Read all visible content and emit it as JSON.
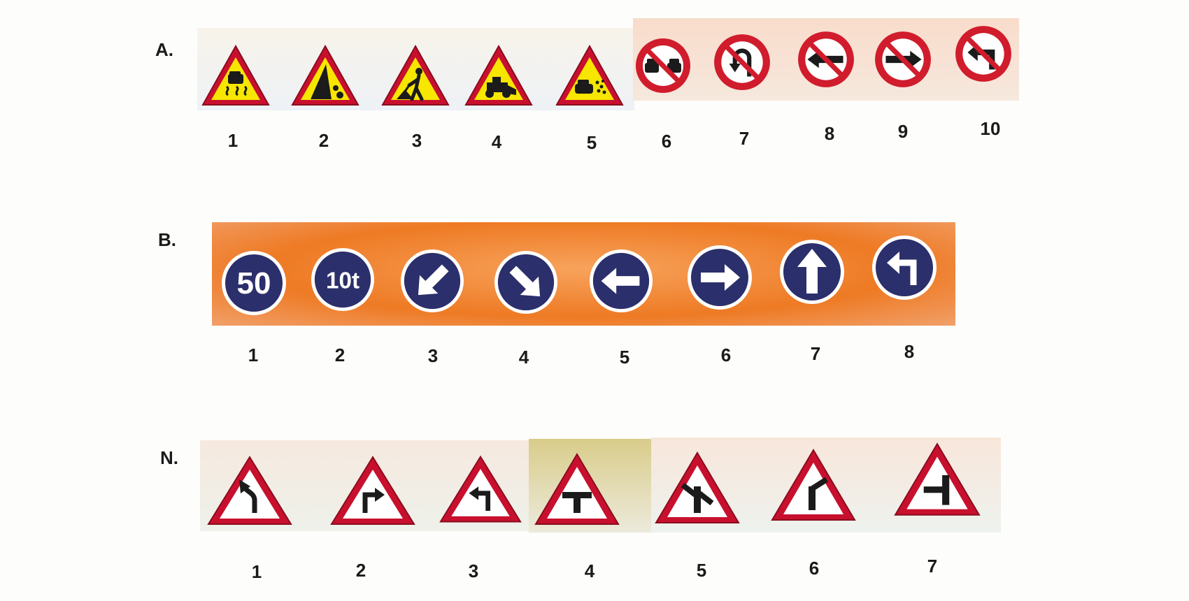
{
  "colors": {
    "warning_red": "#c8102e",
    "warning_yellow": "#f6e600",
    "mandatory_blue": "#2b2f6b",
    "prohibition_red": "#d01c2c",
    "strip_orange": "#ee7a24"
  },
  "sections": [
    {
      "label": "A.",
      "signs": [
        {
          "number": "1",
          "icon": "slippery-road-icon"
        },
        {
          "number": "2",
          "icon": "falling-rocks-icon"
        },
        {
          "number": "3",
          "icon": "road-works-icon"
        },
        {
          "number": "4",
          "icon": "road-machinery-icon"
        },
        {
          "number": "5",
          "icon": "loose-gravel-icon"
        },
        {
          "number": "6",
          "icon": "no-overtaking-icon"
        },
        {
          "number": "7",
          "icon": "no-u-turn-icon"
        },
        {
          "number": "8",
          "icon": "no-left-arrow-icon"
        },
        {
          "number": "9",
          "icon": "no-right-arrow-icon"
        },
        {
          "number": "10",
          "icon": "no-left-turn-icon"
        }
      ]
    },
    {
      "label": "B.",
      "signs": [
        {
          "number": "1",
          "icon": "speed-limit-icon",
          "text": "50"
        },
        {
          "number": "2",
          "icon": "weight-limit-icon",
          "text": "10t"
        },
        {
          "number": "3",
          "icon": "keep-left-down-icon"
        },
        {
          "number": "4",
          "icon": "keep-right-down-icon"
        },
        {
          "number": "5",
          "icon": "left-arrow-icon"
        },
        {
          "number": "6",
          "icon": "right-arrow-icon"
        },
        {
          "number": "7",
          "icon": "up-arrow-icon"
        },
        {
          "number": "8",
          "icon": "turn-left-icon"
        }
      ]
    },
    {
      "label": "N.",
      "signs": [
        {
          "number": "1",
          "icon": "curve-left-icon"
        },
        {
          "number": "2",
          "icon": "turn-right-ahead-icon"
        },
        {
          "number": "3",
          "icon": "turn-left-ahead-icon"
        },
        {
          "number": "4",
          "icon": "t-junction-icon"
        },
        {
          "number": "5",
          "icon": "y-junction-right-icon"
        },
        {
          "number": "6",
          "icon": "y-junction-left-icon"
        },
        {
          "number": "7",
          "icon": "side-road-left-icon"
        }
      ]
    }
  ]
}
